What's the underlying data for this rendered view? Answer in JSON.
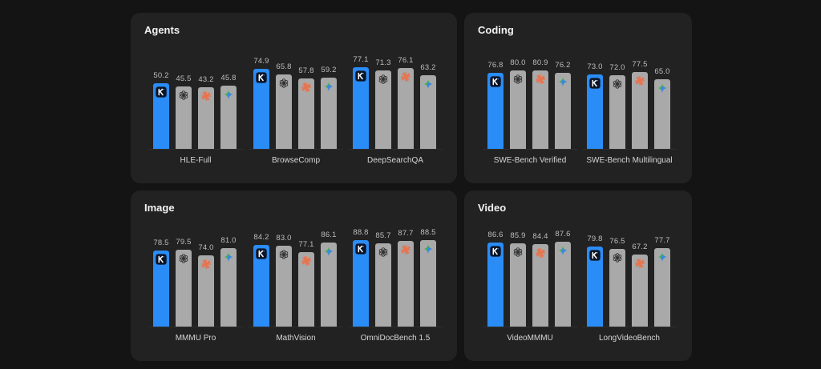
{
  "chart_data": [
    {
      "type": "bar",
      "id": "agents",
      "title": "Agents",
      "series": [
        "K",
        "OpenAI",
        "Anthropic",
        "Gemini"
      ],
      "series_icons": [
        "kimi-k-icon",
        "openai-icon",
        "claude-starburst-icon",
        "gemini-sparkle-icon"
      ],
      "highlight_series": 0,
      "categories": [
        "HLE-Full",
        "BrowseComp",
        "DeepSearchQA"
      ],
      "values": [
        [
          50.2,
          45.5,
          43.2,
          45.8
        ],
        [
          74.9,
          65.8,
          57.8,
          59.2
        ],
        [
          77.1,
          71.3,
          76.1,
          63.2
        ]
      ],
      "labels": [
        [
          "50.2",
          "45.5",
          "43.2",
          "45.8"
        ],
        [
          "74.9",
          "65.8",
          "57.8",
          "59.2"
        ],
        [
          "77.1",
          "71.3",
          "76.1",
          "63.2"
        ]
      ],
      "ylim": [
        -60,
        88
      ],
      "grid": false,
      "xlabel": "",
      "ylabel": ""
    },
    {
      "type": "bar",
      "id": "coding",
      "title": "Coding",
      "series": [
        "K",
        "OpenAI",
        "Anthropic",
        "Gemini"
      ],
      "series_icons": [
        "kimi-k-icon",
        "openai-icon",
        "claude-starburst-icon",
        "gemini-sparkle-icon"
      ],
      "highlight_series": 0,
      "categories": [
        "SWE-Bench Verified",
        "SWE-Bench Multilingual"
      ],
      "values": [
        [
          76.8,
          80.0,
          80.9,
          76.2
        ],
        [
          73.0,
          72.0,
          77.5,
          65.0
        ]
      ],
      "labels": [
        [
          "76.8",
          "80.0",
          "80.9",
          "76.2"
        ],
        [
          "73.0",
          "72.0",
          "77.5",
          "65.0"
        ]
      ],
      "ylim": [
        -61,
        98
      ],
      "grid": false,
      "xlabel": "",
      "ylabel": ""
    },
    {
      "type": "bar",
      "id": "image",
      "title": "Image",
      "series": [
        "K",
        "OpenAI",
        "Anthropic",
        "Gemini"
      ],
      "series_icons": [
        "kimi-k-icon",
        "openai-icon",
        "claude-starburst-icon",
        "gemini-sparkle-icon"
      ],
      "highlight_series": 0,
      "categories": [
        "MMMU Pro",
        "MathVision",
        "OmniDocBench 1.5"
      ],
      "values": [
        [
          78.5,
          79.5,
          74.0,
          81.0
        ],
        [
          84.2,
          83.0,
          77.1,
          86.1
        ],
        [
          88.8,
          85.7,
          87.7,
          88.5
        ]
      ],
      "labels": [
        [
          "78.5",
          "79.5",
          "74.0",
          "81.0"
        ],
        [
          "84.2",
          "83.0",
          "77.1",
          "86.1"
        ],
        [
          "88.8",
          "85.7",
          "87.7",
          "88.5"
        ]
      ],
      "ylim": [
        5,
        90
      ],
      "grid": false,
      "xlabel": "",
      "ylabel": ""
    },
    {
      "type": "bar",
      "id": "video",
      "title": "Video",
      "series": [
        "K",
        "OpenAI",
        "Anthropic",
        "Gemini"
      ],
      "series_icons": [
        "kimi-k-icon",
        "openai-icon",
        "claude-starburst-icon",
        "gemini-sparkle-icon"
      ],
      "highlight_series": 0,
      "categories": [
        "VideoMMMU",
        "LongVideoBench"
      ],
      "values": [
        [
          86.6,
          85.9,
          84.4,
          87.6
        ],
        [
          79.8,
          76.5,
          67.2,
          77.7
        ]
      ],
      "labels": [
        [
          "86.6",
          "85.9",
          "84.4",
          "87.6"
        ],
        [
          "79.8",
          "76.5",
          "67.2",
          "77.7"
        ]
      ],
      "ylim": [
        -48,
        93
      ],
      "grid": false,
      "xlabel": "",
      "ylabel": ""
    }
  ],
  "colors": {
    "highlight": "#2a8cf7",
    "other": "#a9a9a9",
    "panel": "#222222",
    "background": "#141414"
  }
}
